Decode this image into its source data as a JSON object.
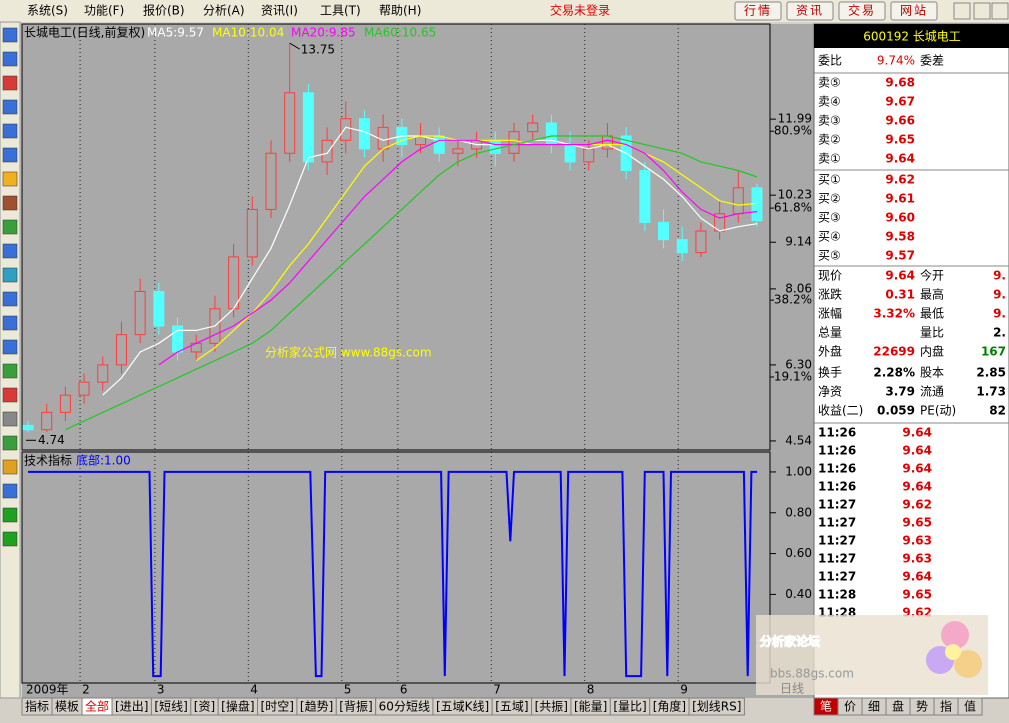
{
  "menu": {
    "items": [
      "系统(S)",
      "功能(F)",
      "报价(B)",
      "分析(A)",
      "资讯(I)",
      "工具(T)",
      "帮助(H)"
    ],
    "status": "交易未登录",
    "buttons": [
      "行情",
      "资讯",
      "交易",
      "网站"
    ]
  },
  "chart_data": [
    {
      "type": "candlestick",
      "title": "长城电工(日线,前复权)",
      "categories": [
        "2009年",
        null,
        null,
        "2",
        null,
        null,
        null,
        "3",
        null,
        null,
        null,
        null,
        "4",
        null,
        null,
        null,
        null,
        "5",
        null,
        null,
        "6",
        null,
        null,
        null,
        null,
        "7",
        null,
        null,
        null,
        null,
        "8",
        null,
        null,
        null,
        null,
        "9",
        null,
        null,
        null,
        null
      ],
      "open": [
        4.9,
        4.8,
        5.2,
        5.6,
        5.9,
        6.3,
        7.0,
        8.0,
        7.2,
        6.6,
        6.8,
        7.6,
        8.8,
        9.9,
        11.2,
        12.6,
        11.0,
        11.5,
        12.0,
        11.3,
        11.8,
        11.4,
        11.6,
        11.2,
        11.3,
        11.5,
        11.2,
        11.7,
        11.9,
        11.4,
        11.0,
        11.3,
        11.6,
        10.8,
        9.6,
        9.2,
        8.9,
        9.4,
        9.8,
        10.4
      ],
      "high": [
        5.0,
        5.4,
        5.8,
        6.1,
        6.5,
        7.3,
        8.3,
        8.2,
        7.4,
        7.0,
        7.9,
        9.1,
        10.2,
        11.5,
        13.75,
        12.8,
        11.8,
        12.4,
        12.2,
        12.1,
        12.0,
        11.9,
        11.8,
        11.5,
        11.7,
        11.7,
        11.9,
        12.1,
        12.1,
        11.7,
        11.5,
        11.9,
        11.8,
        11.0,
        9.9,
        9.5,
        9.6,
        10.1,
        10.8,
        10.5
      ],
      "low": [
        4.74,
        4.75,
        5.0,
        5.4,
        5.7,
        6.1,
        6.8,
        7.0,
        6.4,
        6.4,
        6.6,
        7.4,
        8.6,
        9.7,
        11.0,
        10.8,
        10.7,
        11.2,
        11.1,
        11.0,
        11.1,
        11.2,
        11.0,
        10.9,
        11.1,
        10.9,
        11.0,
        11.5,
        11.2,
        10.8,
        10.8,
        11.1,
        10.6,
        9.4,
        9.0,
        8.7,
        8.8,
        9.2,
        9.6,
        9.5
      ],
      "close": [
        4.8,
        5.2,
        5.6,
        5.9,
        6.3,
        7.0,
        8.0,
        7.2,
        6.6,
        6.8,
        7.6,
        8.8,
        9.9,
        11.2,
        12.6,
        11.0,
        11.5,
        12.0,
        11.3,
        11.8,
        11.4,
        11.6,
        11.2,
        11.3,
        11.5,
        11.2,
        11.7,
        11.9,
        11.4,
        11.0,
        11.3,
        11.6,
        10.8,
        9.6,
        9.2,
        8.9,
        9.4,
        9.8,
        10.4,
        9.64
      ],
      "series": [
        {
          "name": "MA5:9.57",
          "color": "#ffffff",
          "values": [
            null,
            null,
            null,
            null,
            5.6,
            6.0,
            6.6,
            6.8,
            7.1,
            7.1,
            7.2,
            7.6,
            8.3,
            9.0,
            10.0,
            11.1,
            11.2,
            11.8,
            11.7,
            11.5,
            11.6,
            11.6,
            11.5,
            11.5,
            11.4,
            11.4,
            11.4,
            11.5,
            11.5,
            11.4,
            11.3,
            11.4,
            11.2,
            10.9,
            10.6,
            10.2,
            9.7,
            9.4,
            9.5,
            9.57
          ]
        },
        {
          "name": "MA10:10.04",
          "color": "#ffff00",
          "values": [
            null,
            null,
            null,
            null,
            null,
            null,
            null,
            null,
            null,
            6.4,
            6.7,
            7.1,
            7.5,
            8.0,
            8.6,
            9.1,
            9.7,
            10.3,
            10.9,
            11.3,
            11.5,
            11.6,
            11.6,
            11.5,
            11.5,
            11.5,
            11.5,
            11.4,
            11.4,
            11.4,
            11.4,
            11.4,
            11.4,
            11.2,
            11.0,
            10.7,
            10.4,
            10.1,
            10.0,
            10.04
          ]
        },
        {
          "name": "MA20:9.85",
          "color": "#ff00ff",
          "values": [
            null,
            null,
            null,
            null,
            null,
            null,
            null,
            6.3,
            6.6,
            6.8,
            7.0,
            7.2,
            7.5,
            7.8,
            8.2,
            8.7,
            9.2,
            9.7,
            10.2,
            10.6,
            11.0,
            11.3,
            11.5,
            11.5,
            11.5,
            11.4,
            11.4,
            11.4,
            11.4,
            11.4,
            11.4,
            11.5,
            11.4,
            11.2,
            10.8,
            10.3,
            9.9,
            9.7,
            9.8,
            9.85
          ]
        },
        {
          "name": "MA60:10.65",
          "color": "#22c822",
          "values": [
            null,
            null,
            4.8,
            5.0,
            5.2,
            5.4,
            5.6,
            5.8,
            6.0,
            6.2,
            6.4,
            6.6,
            6.8,
            7.1,
            7.5,
            7.9,
            8.3,
            8.7,
            9.1,
            9.5,
            9.9,
            10.3,
            10.7,
            11.0,
            11.2,
            11.3,
            11.4,
            11.5,
            11.6,
            11.6,
            11.6,
            11.6,
            11.5,
            11.4,
            11.3,
            11.2,
            11.0,
            10.9,
            10.8,
            10.65
          ]
        }
      ],
      "up_color": "#ff3c3c",
      "down_color": "#54ffff",
      "high_label": 13.75,
      "low_label": 4.74,
      "ylim": [
        4.33,
        14.1
      ],
      "yticks": [
        11.99,
        10.23,
        9.14,
        8.06,
        {
          "value": 6.3,
          "label": "6.30"
        },
        4.54
      ],
      "ratio_ticks": [
        {
          "value": 11.71,
          "label": "80.9%"
        },
        {
          "value": 9.93,
          "label": "61.8%"
        },
        {
          "value": 7.8,
          "label": "38.2%"
        },
        {
          "value": 6.02,
          "label": "19.1%"
        }
      ]
    },
    {
      "type": "line",
      "title": "技术指标",
      "series": [
        {
          "name": "底部:1.00",
          "color": "#0000ff",
          "x": [
            0,
            6.5,
            6.7,
            7.1,
            7.3,
            15.1,
            15.4,
            15.7,
            15.9,
            22.1,
            22.3,
            22.5,
            25.6,
            25.8,
            26.0,
            28.5,
            28.7,
            28.9,
            31.8,
            32.0,
            32.8,
            33.0,
            34.0,
            34.2,
            34.4,
            38.3,
            38.5,
            38.7,
            39
          ],
          "values": [
            1,
            1,
            0,
            0,
            1,
            1,
            0,
            0,
            1,
            1,
            0,
            1,
            1,
            0.66,
            1,
            1,
            0,
            1,
            1,
            0,
            0,
            1,
            1,
            0,
            1,
            1,
            0,
            1,
            1
          ]
        }
      ],
      "xlim": [
        0,
        39
      ],
      "ylim": [
        -0.034,
        1.083
      ],
      "yticks": [
        {
          "value": 1,
          "label": "1.00"
        },
        {
          "value": 0.8,
          "label": "0.80"
        },
        {
          "value": 0.6,
          "label": "0.60"
        },
        {
          "value": 0.4,
          "label": "0.40"
        }
      ]
    }
  ],
  "watermark": "分析家公式网 www.88gs.com",
  "bottom_tabs": [
    "指标",
    "模板",
    "全部",
    "[进出]",
    "[短线]",
    "[资]",
    "[操盘]",
    "[时空]",
    "[趋势]",
    "[背振]",
    "60分短线",
    "[五域K线]",
    "[五域]",
    "[共振]",
    "[能量]",
    "[量比]",
    "[角度]",
    "[划线RS]"
  ],
  "quote": {
    "title": "600192 长城电工",
    "ratio": [
      "委比",
      "9.74%",
      "委差"
    ],
    "asks": [
      [
        "卖⑤",
        "9.68"
      ],
      [
        "卖④",
        "9.67"
      ],
      [
        "卖③",
        "9.66"
      ],
      [
        "卖②",
        "9.65"
      ],
      [
        "卖①",
        "9.64"
      ]
    ],
    "bids": [
      [
        "买①",
        "9.62"
      ],
      [
        "买②",
        "9.61"
      ],
      [
        "买③",
        "9.60"
      ],
      [
        "买④",
        "9.58"
      ],
      [
        "买⑤",
        "9.57"
      ]
    ],
    "stats": [
      {
        "l1": "现价",
        "v1": "9.64",
        "l2": "今开",
        "v2": "9."
      },
      {
        "l1": "涨跌",
        "v1": "0.31",
        "l2": "最高",
        "v2": "9."
      },
      {
        "l1": "涨幅",
        "v1": "3.32%",
        "l2": "最低",
        "v2": "9."
      },
      {
        "l1": "总量",
        "l2": "量比",
        "v2": "2."
      },
      {
        "l1": "外盘",
        "v1": "22699",
        "l2": "内盘",
        "v2": "167"
      },
      {
        "l1": "换手",
        "v1": "2.28%",
        "l2": "股本",
        "v2": "2.85"
      },
      {
        "l1": "净资",
        "v1": "3.79",
        "l2": "流通",
        "v2": "1.73"
      },
      {
        "l1": "收益(二)",
        "v1": "0.059",
        "l2": "PE(动)",
        "v2": "82"
      }
    ],
    "ticks": [
      [
        "11:26",
        "9.64"
      ],
      [
        "11:26",
        "9.64"
      ],
      [
        "11:26",
        "9.64"
      ],
      [
        "11:26",
        "9.64"
      ],
      [
        "11:27",
        "9.62"
      ],
      [
        "11:27",
        "9.65"
      ],
      [
        "11:27",
        "9.63"
      ],
      [
        "11:27",
        "9.63"
      ],
      [
        "11:27",
        "9.64"
      ],
      [
        "11:28",
        "9.65"
      ],
      [
        "11:28",
        "9.62"
      ]
    ]
  },
  "forum": {
    "name": "分析家论坛",
    "url": "bbs.88gs.com"
  },
  "period_label": "日线",
  "side_tabs": [
    "笔",
    "价",
    "细",
    "盘",
    "势",
    "指",
    "值"
  ]
}
